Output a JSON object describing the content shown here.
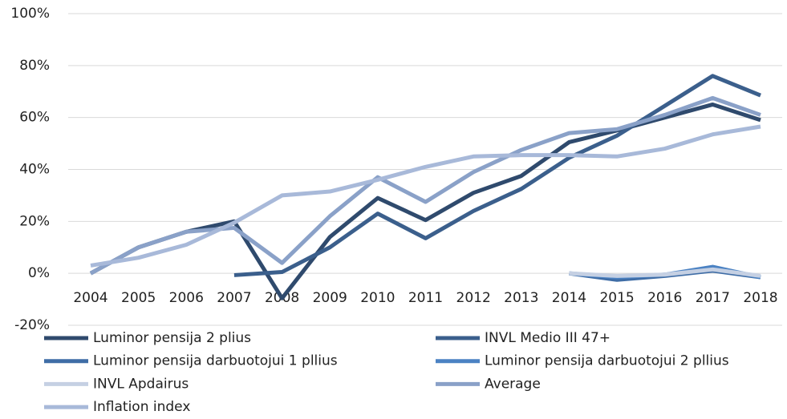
{
  "chart_data": {
    "type": "line",
    "categories": [
      "2004",
      "2005",
      "2006",
      "2007",
      "2008",
      "2009",
      "2010",
      "2011",
      "2012",
      "2013",
      "2014",
      "2015",
      "2016",
      "2017",
      "2018"
    ],
    "series": [
      {
        "name": "Luminor pensija 2 plius",
        "color": "#2f4a6d",
        "values": [
          0,
          10,
          16,
          20,
          -9.6,
          14,
          29,
          20.5,
          31,
          37.5,
          50.5,
          55,
          60,
          65,
          59
        ]
      },
      {
        "name": "INVL Medio III 47+",
        "color": "#3b5f8c",
        "values": [
          null,
          null,
          null,
          -0.7,
          0.5,
          10,
          23,
          13.5,
          24,
          32.5,
          44.5,
          53,
          64.5,
          76,
          68.5
        ]
      },
      {
        "name": "Luminor pensija darbuotojui 1 pllius",
        "color": "#3f6da6",
        "values": [
          null,
          null,
          null,
          null,
          null,
          null,
          null,
          null,
          null,
          null,
          0,
          -2.5,
          -1,
          1,
          -1.5
        ]
      },
      {
        "name": "Luminor pensija darbuotojui 2 pllius",
        "color": "#4b82c3",
        "values": [
          null,
          null,
          null,
          null,
          null,
          null,
          null,
          null,
          null,
          null,
          0,
          -1.5,
          -0.5,
          2.5,
          -1.5
        ]
      },
      {
        "name": "INVL Apdairus",
        "color": "#c5d0e3",
        "values": [
          null,
          null,
          null,
          null,
          null,
          null,
          null,
          null,
          null,
          null,
          0,
          -1,
          -0.5,
          1.5,
          -1
        ]
      },
      {
        "name": "Average",
        "color": "#8aa1c8",
        "values": [
          0,
          10,
          16,
          17.5,
          4,
          22,
          37,
          27.5,
          39,
          47.5,
          54,
          55.5,
          61,
          67.5,
          61
        ]
      },
      {
        "name": "Inflation index",
        "color": "#a8b9d9",
        "values": [
          3,
          6,
          11,
          19.5,
          30,
          31.5,
          36,
          41,
          45,
          45.5,
          45.5,
          45,
          48,
          53.5,
          56.5
        ]
      }
    ],
    "ylim": [
      -20,
      100
    ],
    "yticks": [
      {
        "value": -20,
        "label": "-20%"
      },
      {
        "value": 0,
        "label": "0%"
      },
      {
        "value": 20,
        "label": "20%"
      },
      {
        "value": 40,
        "label": "40%"
      },
      {
        "value": 60,
        "label": "60%"
      },
      {
        "value": 80,
        "label": "80%"
      },
      {
        "value": 100,
        "label": "100%"
      }
    ],
    "grid": true
  }
}
